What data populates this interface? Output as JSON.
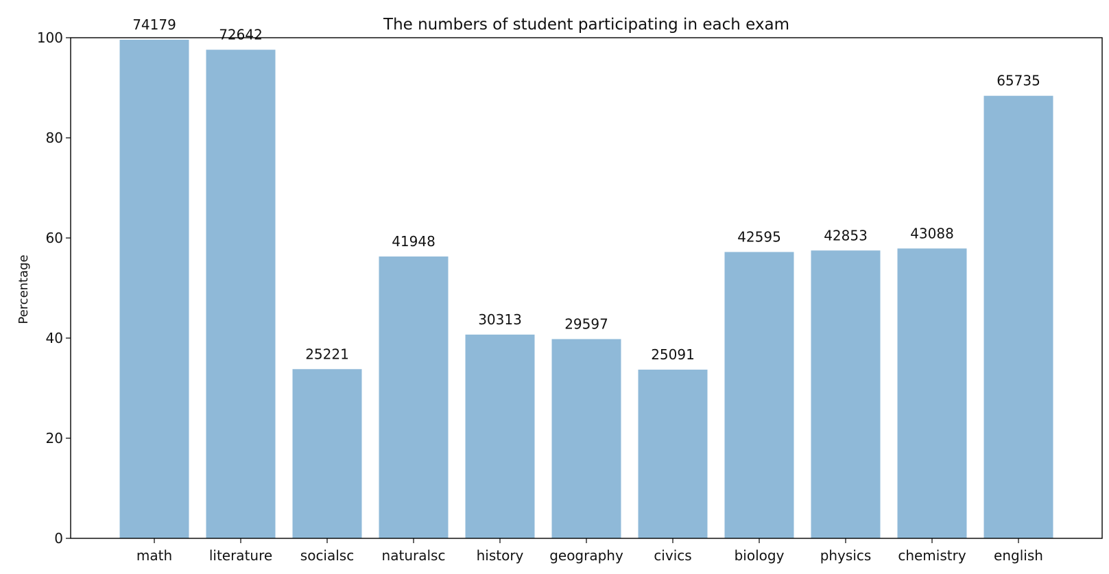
{
  "chart_data": {
    "type": "bar",
    "title": "The numbers of student participating in each exam",
    "xlabel": "",
    "ylabel": "Percentage",
    "ylim": [
      0,
      100
    ],
    "yticks": [
      0,
      20,
      40,
      60,
      80,
      100
    ],
    "grid": false,
    "categories": [
      "math",
      "literature",
      "socialsc",
      "naturalsc",
      "history",
      "geography",
      "civics",
      "biology",
      "physics",
      "chemistry",
      "english"
    ],
    "values": [
      99.6,
      97.6,
      33.8,
      56.3,
      40.7,
      39.8,
      33.7,
      57.2,
      57.5,
      57.9,
      88.4
    ],
    "data_labels": [
      "74179",
      "72642",
      "25221",
      "41948",
      "30313",
      "29597",
      "25091",
      "42595",
      "42853",
      "43088",
      "65735"
    ],
    "colors": {
      "bar": "#8fb9d8",
      "axis": "#000000",
      "text": "#111111"
    }
  }
}
